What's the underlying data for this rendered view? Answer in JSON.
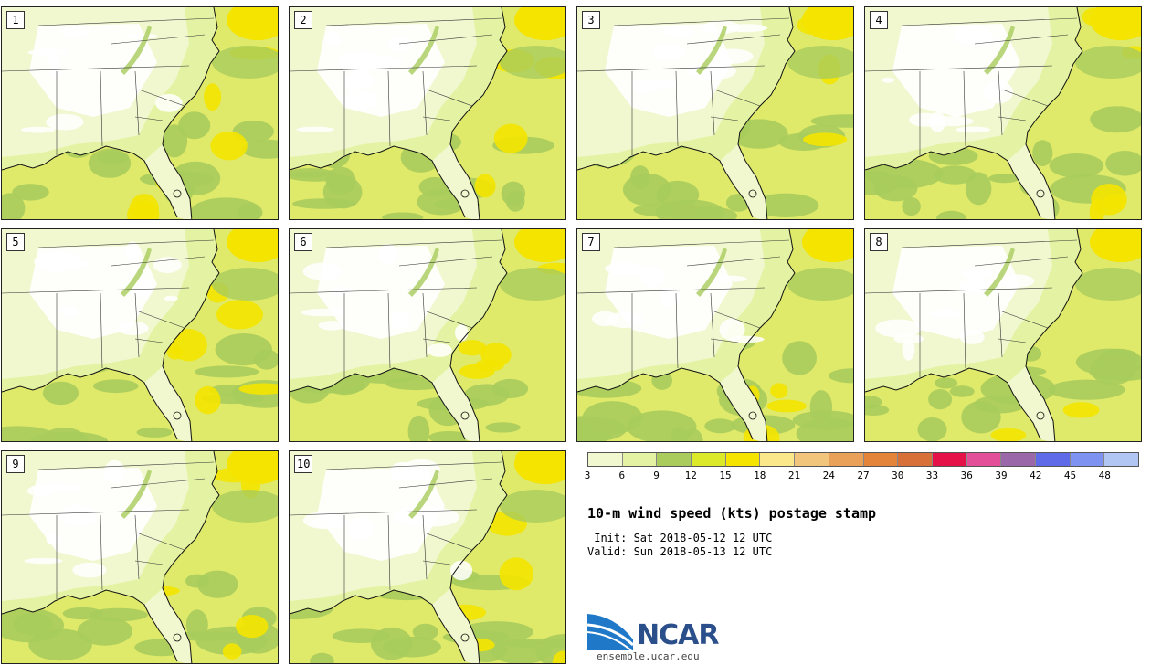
{
  "panels": [
    {
      "label": "1"
    },
    {
      "label": "2"
    },
    {
      "label": "3"
    },
    {
      "label": "4"
    },
    {
      "label": "5"
    },
    {
      "label": "6"
    },
    {
      "label": "7"
    },
    {
      "label": "8"
    },
    {
      "label": "9"
    },
    {
      "label": "10"
    }
  ],
  "colorbar": {
    "colors": [
      "#f1f7cf",
      "#e4f3a3",
      "#a9cc5c",
      "#dce928",
      "#f4e400",
      "#fbe88a",
      "#f1c67c",
      "#e9a058",
      "#e3843a",
      "#d8703a",
      "#e5124a",
      "#e44f9a",
      "#9a67a8",
      "#5f6ae8",
      "#7d92f1",
      "#b2c6f4"
    ],
    "ticks": [
      "3",
      "6",
      "9",
      "12",
      "15",
      "18",
      "21",
      "24",
      "27",
      "30",
      "33",
      "36",
      "39",
      "42",
      "45",
      "48"
    ]
  },
  "title": "10-m wind speed (kts) postage stamp",
  "init_text": " Init: Sat 2018-05-12 12 UTC",
  "valid_text": "Valid: Sun 2018-05-13 12 UTC",
  "logo": {
    "word": "NCAR",
    "url": "ensemble.ucar.edu"
  }
}
